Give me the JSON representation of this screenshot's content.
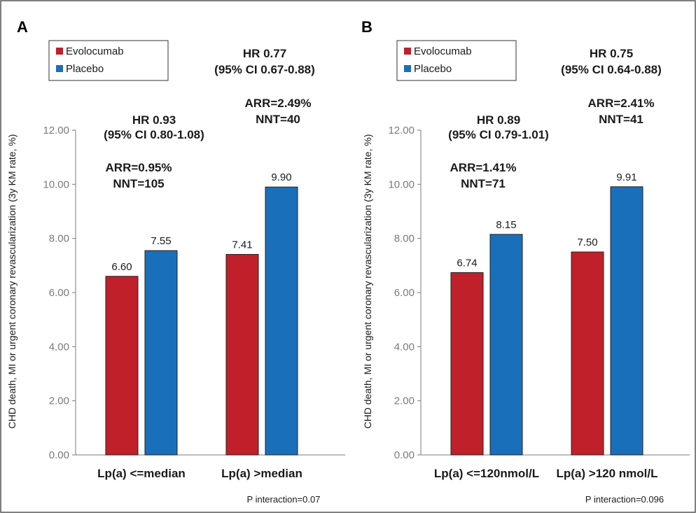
{
  "colors": {
    "evolocumab": "#c0202a",
    "placebo": "#1a6fba",
    "axis": "#7a7a7a",
    "border": "#555555"
  },
  "chart_data": [
    {
      "type": "bar",
      "panel_label": "A",
      "categories": [
        "Lp(a) <=median",
        "Lp(a) >median"
      ],
      "series": [
        {
          "name": "Evolocumab",
          "values": [
            6.6,
            7.41
          ],
          "labels": [
            "6.60",
            "7.41"
          ]
        },
        {
          "name": "Placebo",
          "values": [
            7.55,
            9.9
          ],
          "labels": [
            "7.55",
            "9.90"
          ]
        }
      ],
      "ylabel": "CHD death, MI or urgent coronary revascularization (3y KM rate, %)",
      "ylim": [
        0,
        12
      ],
      "yticks": [
        "0.00",
        "2.00",
        "4.00",
        "6.00",
        "8.00",
        "10.00",
        "12.00"
      ],
      "legend": "top-left",
      "grid": false,
      "annotations": [
        {
          "lines": [
            "HR 0.93",
            "(95% CI 0.80-1.08)"
          ]
        },
        {
          "lines": [
            "ARR=0.95%",
            "NNT=105"
          ]
        },
        {
          "lines": [
            "HR 0.77",
            "(95% CI 0.67-0.88)"
          ]
        },
        {
          "lines": [
            "ARR=2.49%",
            "NNT=40"
          ]
        }
      ],
      "footnote": "P interaction=0.07"
    },
    {
      "type": "bar",
      "panel_label": "B",
      "categories": [
        "Lp(a) <=120nmol/L",
        "Lp(a) >120 nmol/L"
      ],
      "series": [
        {
          "name": "Evolocumab",
          "values": [
            6.74,
            7.5
          ],
          "labels": [
            "6.74",
            "7.50"
          ]
        },
        {
          "name": "Placebo",
          "values": [
            8.15,
            9.91
          ],
          "labels": [
            "8.15",
            "9.91"
          ]
        }
      ],
      "ylabel": "CHD death, MI or urgent coronary revascularization (3y KM rate, %)",
      "ylim": [
        0,
        12
      ],
      "yticks": [
        "0.00",
        "2.00",
        "4.00",
        "6.00",
        "8.00",
        "10.00",
        "12.00"
      ],
      "legend": "top-left",
      "grid": false,
      "annotations": [
        {
          "lines": [
            "HR 0.89",
            "(95% CI 0.79-1.01)"
          ]
        },
        {
          "lines": [
            "ARR=1.41%",
            "NNT=71"
          ]
        },
        {
          "lines": [
            "HR 0.75",
            "(95% CI 0.64-0.88)"
          ]
        },
        {
          "lines": [
            "ARR=2.41%",
            "NNT=41"
          ]
        }
      ],
      "footnote": "P interaction=0.096"
    }
  ]
}
